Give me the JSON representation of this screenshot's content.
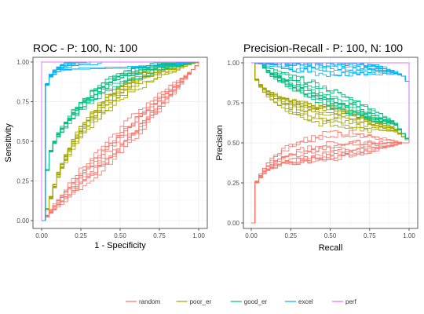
{
  "chart_data": [
    {
      "type": "line",
      "title": "ROC - P: 100, N: 100",
      "xlabel": "1 - Specificity",
      "ylabel": "Sensitivity",
      "xlim": [
        0,
        1
      ],
      "ylim": [
        0,
        1
      ],
      "x_ticks": [
        "0.00",
        "0.25",
        "0.50",
        "0.75",
        "1.00"
      ],
      "y_ticks": [
        "0.00",
        "0.25",
        "0.50",
        "0.75",
        "1.00"
      ],
      "grid": true,
      "legend": "bottom",
      "series": [
        {
          "name": "random",
          "color": "#F8766D",
          "curves": 10,
          "x": [
            0,
            0.1,
            0.25,
            0.4,
            0.5,
            0.6,
            0.75,
            0.9,
            1.0
          ],
          "y": [
            0,
            0.12,
            0.28,
            0.42,
            0.52,
            0.62,
            0.76,
            0.9,
            1.0
          ]
        },
        {
          "name": "poor_er",
          "color": "#A3A500",
          "curves": 10,
          "x": [
            0,
            0.05,
            0.1,
            0.2,
            0.3,
            0.4,
            0.5,
            0.6,
            0.75,
            0.9,
            1.0
          ],
          "y": [
            0,
            0.15,
            0.3,
            0.5,
            0.62,
            0.72,
            0.8,
            0.87,
            0.93,
            0.98,
            1.0
          ]
        },
        {
          "name": "good_er",
          "color": "#00BF7D",
          "curves": 10,
          "x": [
            0,
            0.02,
            0.05,
            0.1,
            0.2,
            0.3,
            0.4,
            0.5,
            0.6,
            0.75,
            0.9,
            1.0
          ],
          "y": [
            0,
            0.3,
            0.45,
            0.55,
            0.68,
            0.77,
            0.84,
            0.89,
            0.93,
            0.97,
            0.99,
            1.0
          ]
        },
        {
          "name": "excel",
          "color": "#00B0F6",
          "curves": 10,
          "x": [
            0,
            0.01,
            0.02,
            0.05,
            0.1,
            0.2,
            0.3,
            0.5,
            0.75,
            1.0
          ],
          "y": [
            0,
            0.7,
            0.85,
            0.92,
            0.96,
            0.98,
            0.99,
            1.0,
            1.0,
            1.0
          ]
        },
        {
          "name": "perf",
          "color": "#E76BF3",
          "curves": 1,
          "x": [
            0,
            0,
            1
          ],
          "y": [
            0,
            1,
            1
          ]
        }
      ]
    },
    {
      "type": "line",
      "title": "Precision-Recall - P: 100, N: 100",
      "xlabel": "Recall",
      "ylabel": "Precision",
      "xlim": [
        0,
        1
      ],
      "ylim": [
        0,
        1
      ],
      "x_ticks": [
        "0.00",
        "0.25",
        "0.50",
        "0.75",
        "1.00"
      ],
      "y_ticks": [
        "0.00",
        "0.25",
        "0.50",
        "0.75",
        "1.00"
      ],
      "grid": true,
      "legend": "bottom",
      "series": [
        {
          "name": "random",
          "color": "#F8766D",
          "curves": 10,
          "x": [
            0,
            0.02,
            0.05,
            0.1,
            0.2,
            0.3,
            0.4,
            0.5,
            0.6,
            0.7,
            0.8,
            0.9,
            1.0
          ],
          "y": [
            0.0,
            0.25,
            0.3,
            0.36,
            0.42,
            0.45,
            0.47,
            0.49,
            0.5,
            0.5,
            0.5,
            0.5,
            0.5
          ]
        },
        {
          "name": "poor_er",
          "color": "#A3A500",
          "curves": 10,
          "x": [
            0,
            0.02,
            0.05,
            0.1,
            0.2,
            0.3,
            0.4,
            0.5,
            0.6,
            0.7,
            0.8,
            0.9,
            1.0
          ],
          "y": [
            1.0,
            0.9,
            0.85,
            0.8,
            0.74,
            0.7,
            0.68,
            0.66,
            0.64,
            0.62,
            0.6,
            0.58,
            0.5
          ]
        },
        {
          "name": "good_er",
          "color": "#00BF7D",
          "curves": 10,
          "x": [
            0,
            0.05,
            0.1,
            0.2,
            0.3,
            0.4,
            0.5,
            0.6,
            0.7,
            0.8,
            0.9,
            1.0
          ],
          "y": [
            1.0,
            1.0,
            0.95,
            0.9,
            0.86,
            0.82,
            0.78,
            0.74,
            0.7,
            0.66,
            0.62,
            0.5
          ]
        },
        {
          "name": "excel",
          "color": "#00B0F6",
          "curves": 10,
          "x": [
            0,
            0.1,
            0.3,
            0.5,
            0.6,
            0.7,
            0.8,
            0.9,
            0.95,
            0.98,
            1.0
          ],
          "y": [
            1.0,
            1.0,
            1.0,
            0.99,
            0.98,
            0.97,
            0.96,
            0.94,
            0.92,
            0.88,
            0.5
          ]
        },
        {
          "name": "perf",
          "color": "#E76BF3",
          "curves": 1,
          "x": [
            0,
            1,
            1
          ],
          "y": [
            1,
            1,
            0.5
          ]
        }
      ]
    }
  ],
  "legend": {
    "items": [
      {
        "label": "random",
        "color": "#F8766D"
      },
      {
        "label": "poor_er",
        "color": "#A3A500"
      },
      {
        "label": "good_er",
        "color": "#00BF7D"
      },
      {
        "label": "excel",
        "color": "#00B0F6"
      },
      {
        "label": "perf",
        "color": "#E76BF3"
      }
    ]
  }
}
